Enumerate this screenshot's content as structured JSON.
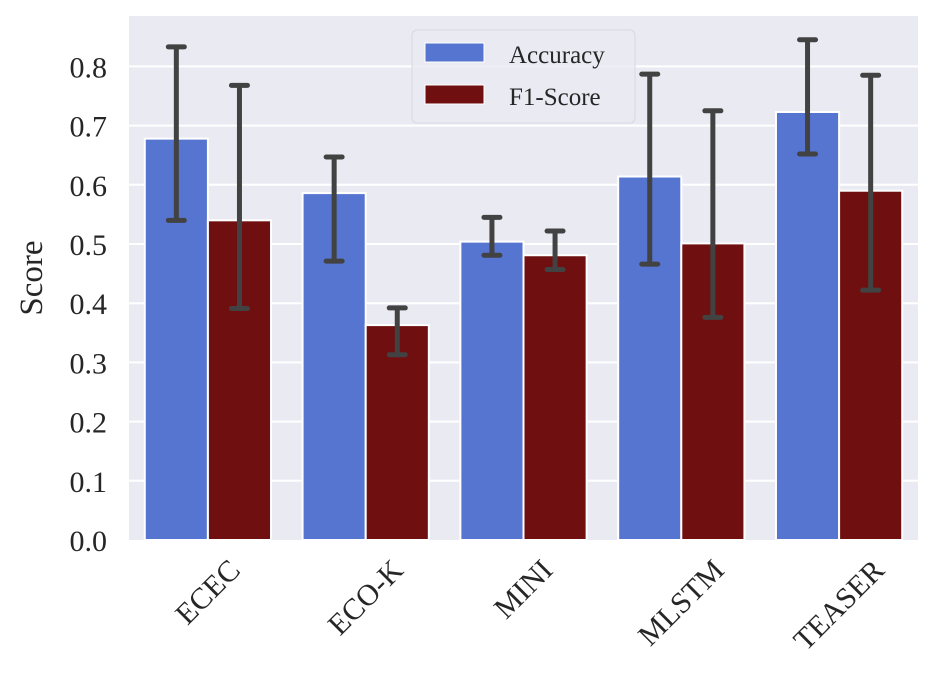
{
  "chart_data": {
    "type": "bar",
    "title": "",
    "xlabel": "",
    "ylabel": "Score",
    "ylim": [
      0,
      0.885
    ],
    "yticks": [
      0.0,
      0.1,
      0.2,
      0.3,
      0.4,
      0.5,
      0.6,
      0.7,
      0.8
    ],
    "ytick_labels": [
      "0.0",
      "0.1",
      "0.2",
      "0.3",
      "0.4",
      "0.5",
      "0.6",
      "0.7",
      "0.8"
    ],
    "categories": [
      "ECEC",
      "ECO-K",
      "MINI",
      "MLSTM",
      "TEASER"
    ],
    "xtick_rotation_deg": 45,
    "grid": true,
    "legend": {
      "position": "top-center",
      "entries": [
        "Accuracy",
        "F1-Score"
      ]
    },
    "series": [
      {
        "name": "Accuracy",
        "color": "#5575D0",
        "values": [
          0.678,
          0.586,
          0.504,
          0.614,
          0.723
        ],
        "error_low": [
          0.54,
          0.471,
          0.481,
          0.466,
          0.652
        ],
        "error_high": [
          0.833,
          0.647,
          0.545,
          0.787,
          0.845
        ]
      },
      {
        "name": "F1-Score",
        "color": "#700F0F",
        "values": [
          0.54,
          0.363,
          0.481,
          0.501,
          0.59
        ],
        "error_low": [
          0.391,
          0.313,
          0.457,
          0.376,
          0.422
        ],
        "error_high": [
          0.768,
          0.392,
          0.522,
          0.725,
          0.785
        ]
      }
    ],
    "colors": {
      "background": "#EAEAF2",
      "grid": "#FFFFFF",
      "error_bar": "#424242"
    }
  }
}
